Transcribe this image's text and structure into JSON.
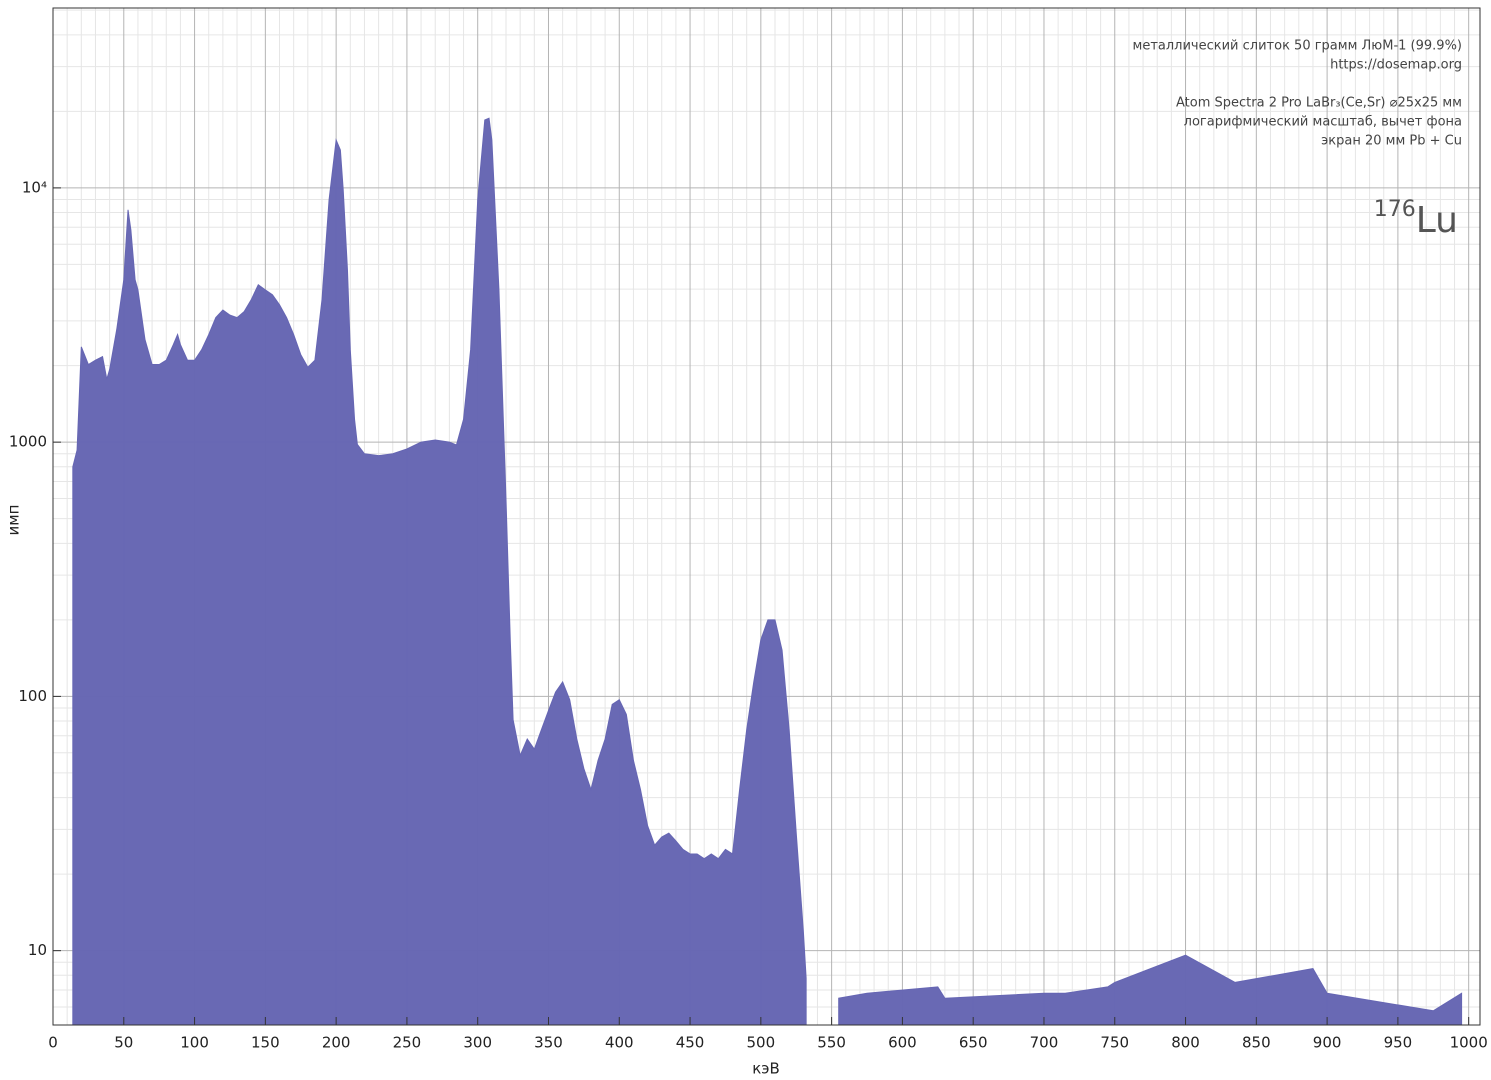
{
  "chart_data": {
    "type": "area",
    "x_label": "кэВ",
    "y_label": "имп",
    "annotations": [
      "металлический слиток 50 грамм ЛюМ-1 (99.9%)",
      "https://dosemap.org",
      "Atom Spectra 2 Pro LaBr₃(Ce,Sr) ⌀25x25 мм",
      "логарифмический масштаб, вычет фона",
      "экран 20 мм Pb + Cu"
    ],
    "isotope": {
      "mass_number": "176",
      "symbol": "Lu"
    },
    "log_y": true,
    "grid": true,
    "xlim": [
      0,
      1008
    ],
    "ylim": [
      5.1,
      51000
    ],
    "xticks": [
      0,
      50,
      100,
      150,
      200,
      250,
      300,
      350,
      400,
      450,
      500,
      550,
      600,
      650,
      700,
      750,
      800,
      850,
      900,
      950,
      1000
    ],
    "yticks": [
      10,
      100,
      1000,
      {
        "value": 10000,
        "label": "10⁴"
      }
    ],
    "series": [
      {
        "color": "#6666b3",
        "x": [
          14,
          17,
          20,
          25,
          30,
          35,
          38,
          40,
          45,
          50,
          53,
          55,
          58,
          60,
          65,
          70,
          75,
          80,
          85,
          88,
          90,
          95,
          100,
          105,
          110,
          115,
          120,
          125,
          130,
          135,
          140,
          145,
          150,
          155,
          160,
          165,
          170,
          175,
          180,
          185,
          190,
          195,
          200,
          203,
          205,
          208,
          210,
          213,
          215,
          220,
          230,
          240,
          250,
          260,
          270,
          280,
          285,
          290,
          295,
          300,
          305,
          308,
          310,
          315,
          320,
          323,
          325,
          330,
          335,
          340,
          345,
          350,
          355,
          360,
          365,
          370,
          375,
          380,
          385,
          390,
          395,
          400,
          405,
          410,
          415,
          420,
          425,
          430,
          435,
          440,
          445,
          450,
          455,
          460,
          465,
          470,
          475,
          480,
          485,
          490,
          495,
          500,
          505,
          510,
          515,
          520,
          525,
          530,
          532,
          540,
          555,
          575,
          625,
          630,
          700,
          715,
          745,
          750,
          800,
          835,
          890,
          900,
          975,
          995
        ],
        "values": [
          800,
          930,
          2370,
          2020,
          2100,
          2170,
          1770,
          1930,
          2770,
          4350,
          8200,
          6840,
          4350,
          3970,
          2530,
          2020,
          2020,
          2100,
          2420,
          2650,
          2420,
          2100,
          2100,
          2310,
          2650,
          3090,
          3310,
          3160,
          3090,
          3260,
          3630,
          4160,
          3970,
          3800,
          3470,
          3090,
          2650,
          2210,
          1970,
          2100,
          3630,
          8970,
          15430,
          14100,
          9820,
          4760,
          2310,
          1230,
          980,
          900,
          885,
          900,
          940,
          1000,
          1020,
          1000,
          975,
          1230,
          2310,
          8970,
          18500,
          18800,
          15430,
          3970,
          594,
          167,
          81,
          58.6,
          68,
          62,
          74,
          88,
          104,
          114,
          97,
          68,
          52,
          43,
          56,
          68,
          93,
          97,
          85,
          56,
          43,
          31,
          26,
          28,
          29,
          27,
          25,
          24,
          24,
          23,
          24,
          23,
          25,
          24,
          43,
          74,
          114,
          167,
          200,
          200,
          152,
          74,
          29,
          12,
          7.8,
          null,
          6.5,
          6.8,
          7.2,
          6.5,
          6.8,
          6.8,
          7.2,
          7.5,
          9.6,
          7.5,
          8.5,
          6.8,
          5.8,
          6.8
        ]
      }
    ]
  }
}
